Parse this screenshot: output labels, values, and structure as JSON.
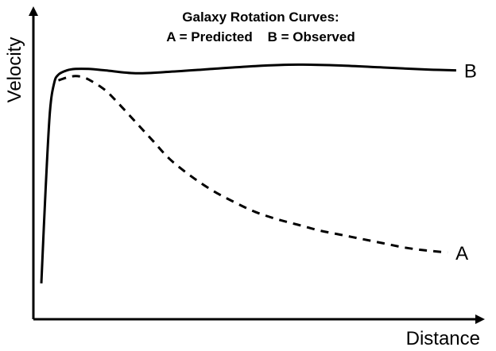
{
  "chart_data": {
    "type": "line",
    "title_line1": "Galaxy Rotation Curves:",
    "title_line2": "A = Predicted    B = Observed",
    "xlabel": "Distance",
    "ylabel": "Velocity",
    "ticks_shown": false,
    "grid": false,
    "xlim": [
      0,
      100
    ],
    "ylim": [
      0,
      100
    ],
    "series": [
      {
        "name": "B",
        "style": "solid",
        "color": "#000000",
        "x": [
          0,
          1,
          2,
          3,
          4,
          6,
          8,
          11,
          15,
          22,
          30,
          40,
          50,
          60,
          70,
          80,
          90,
          97
        ],
        "y": [
          12,
          45,
          72,
          82,
          85,
          86.5,
          87,
          87,
          86.5,
          85.5,
          86,
          87,
          88,
          88.5,
          88.2,
          87.5,
          86.8,
          86.5
        ]
      },
      {
        "name": "A",
        "style": "dashed",
        "color": "#000000",
        "x": [
          4,
          6,
          8,
          10,
          12,
          15,
          18,
          22,
          26,
          30,
          35,
          40,
          45,
          50,
          55,
          60,
          65,
          70,
          75,
          80,
          85,
          90,
          95
        ],
        "y": [
          83,
          84,
          84.5,
          84,
          82.5,
          79.5,
          75,
          68.5,
          62,
          55.5,
          49.5,
          44.5,
          40.5,
          37,
          34.5,
          32.5,
          30.5,
          29,
          27.5,
          26,
          24.5,
          23.5,
          22.8
        ]
      }
    ]
  }
}
